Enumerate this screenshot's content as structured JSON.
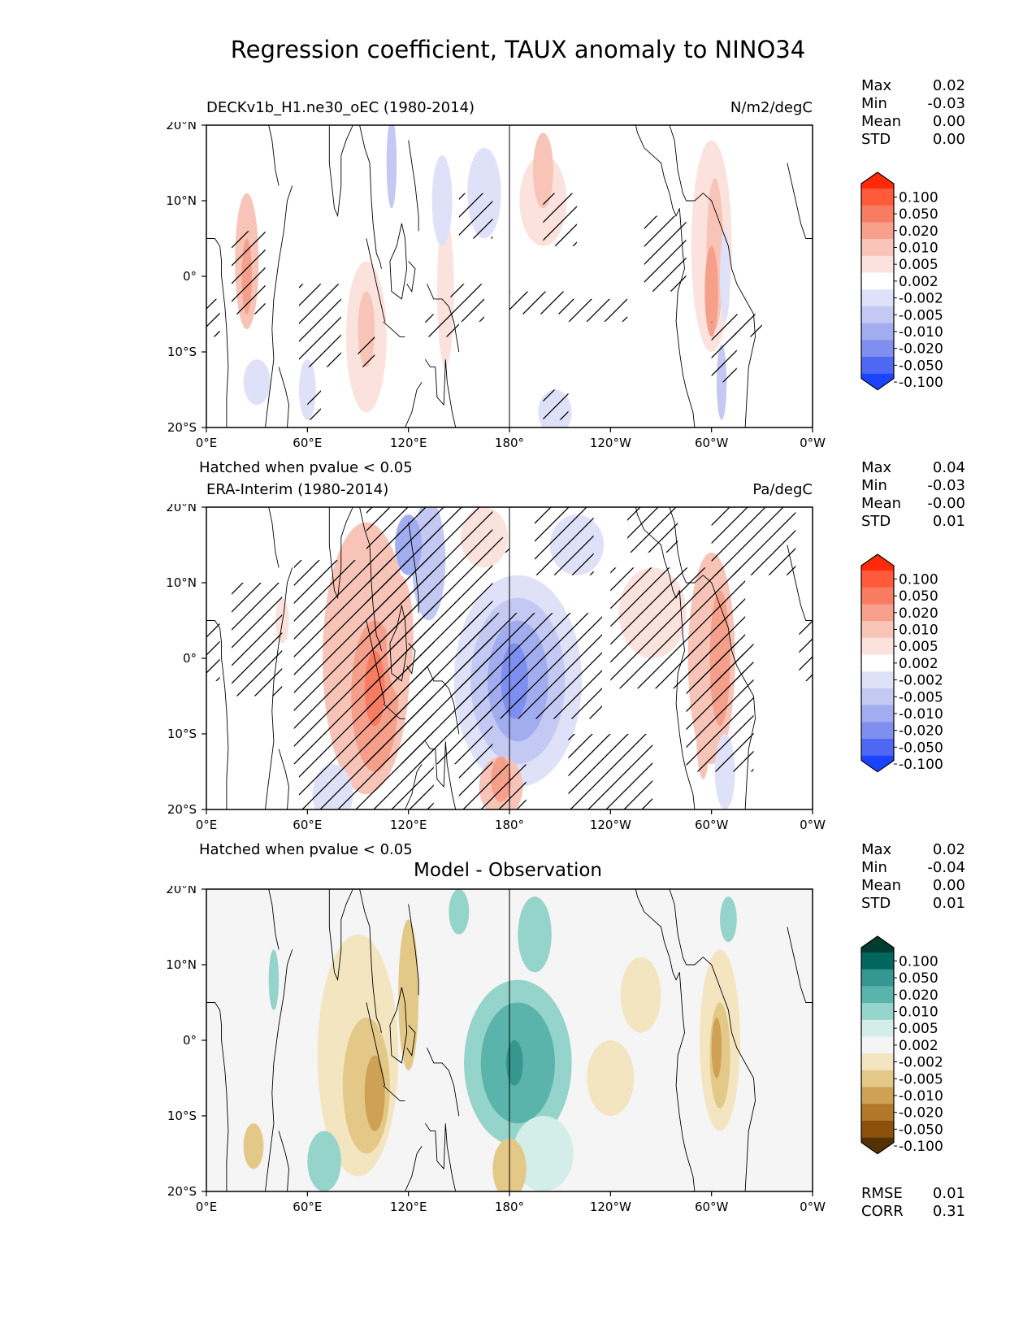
{
  "chart_data": {
    "type": "heatmap",
    "title": "Regression coefficient, TAUX anomaly to NINO34",
    "x_ticks": [
      "0°E",
      "60°E",
      "120°E",
      "180°",
      "120°W",
      "60°W",
      "0°W"
    ],
    "y_ticks": [
      "20°N",
      "10°N",
      "0°",
      "10°S",
      "20°S"
    ],
    "xlim": [
      0,
      360
    ],
    "ylim": [
      -20,
      20
    ],
    "hatch_note": "Hatched when pvalue < 0.05",
    "panels": [
      {
        "id": "model",
        "left_title": "DECKv1b_H1.ne30_oEC (1980-2014)",
        "right_title": "N/m2/degC",
        "stats": [
          {
            "label": "Max",
            "value": "0.02"
          },
          {
            "label": "Min",
            "value": "-0.03"
          },
          {
            "label": "Mean",
            "value": "0.00"
          },
          {
            "label": "STD",
            "value": "0.00"
          }
        ],
        "colorbar": {
          "levels": [
            "0.100",
            "0.050",
            "0.020",
            "0.010",
            "0.005",
            "0.002",
            "-0.002",
            "-0.005",
            "-0.010",
            "-0.020",
            "-0.050",
            "-0.100"
          ],
          "colors": [
            "#ff2a0a",
            "#ff5a3a",
            "#f87c62",
            "#f6a08c",
            "#f8c4b8",
            "#fbe2dc",
            "#ffffff",
            "#dfe1f8",
            "#c3c9f2",
            "#a2adf0",
            "#7f8ff0",
            "#4f68f4",
            "#1a44ff"
          ]
        }
      },
      {
        "id": "obs",
        "left_title": "ERA-Interim (1980-2014)",
        "right_title": "Pa/degC",
        "stats": [
          {
            "label": "Max",
            "value": "0.04"
          },
          {
            "label": "Min",
            "value": "-0.03"
          },
          {
            "label": "Mean",
            "value": "-0.00"
          },
          {
            "label": "STD",
            "value": "0.01"
          }
        ],
        "colorbar": {
          "levels": [
            "0.100",
            "0.050",
            "0.020",
            "0.010",
            "0.005",
            "0.002",
            "-0.002",
            "-0.005",
            "-0.010",
            "-0.020",
            "-0.050",
            "-0.100"
          ],
          "colors": [
            "#ff2a0a",
            "#ff5a3a",
            "#f87c62",
            "#f6a08c",
            "#f8c4b8",
            "#fbe2dc",
            "#ffffff",
            "#dfe1f8",
            "#c3c9f2",
            "#a2adf0",
            "#7f8ff0",
            "#4f68f4",
            "#1a44ff"
          ]
        }
      },
      {
        "id": "diff",
        "center_title": "Model - Observation",
        "stats": [
          {
            "label": "Max",
            "value": "0.02"
          },
          {
            "label": "Min",
            "value": "-0.04"
          },
          {
            "label": "Mean",
            "value": "0.00"
          },
          {
            "label": "STD",
            "value": "0.01"
          }
        ],
        "extra_stats": [
          {
            "label": "RMSE",
            "value": "0.01"
          },
          {
            "label": "CORR",
            "value": "0.31"
          }
        ],
        "colorbar": {
          "levels": [
            "0.100",
            "0.050",
            "0.020",
            "0.010",
            "0.005",
            "0.002",
            "-0.002",
            "-0.005",
            "-0.010",
            "-0.020",
            "-0.050",
            "-0.100"
          ],
          "colors": [
            "#003c30",
            "#01665e",
            "#35978f",
            "#5ab4ac",
            "#95d4ca",
            "#d3ede9",
            "#f5f5f5",
            "#f3e5c0",
            "#e3c887",
            "#cfa154",
            "#b07828",
            "#8c510a",
            "#543005"
          ]
        }
      }
    ]
  }
}
